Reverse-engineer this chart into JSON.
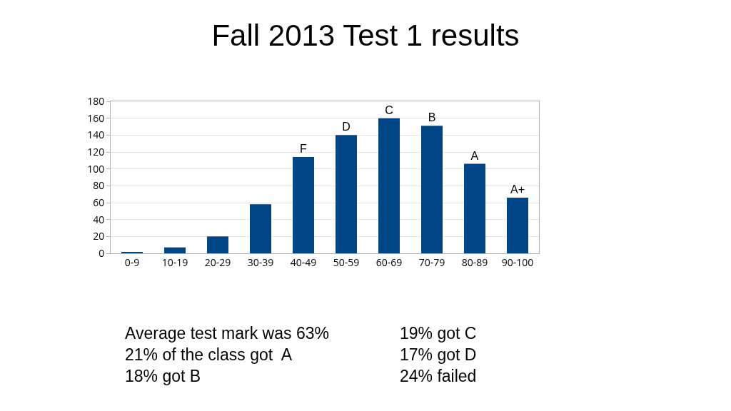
{
  "chart_data": {
    "type": "bar",
    "title": "Fall 2013 Test 1 results",
    "categories": [
      "0-9",
      "10-19",
      "20-29",
      "30-39",
      "40-49",
      "50-59",
      "60-69",
      "70-79",
      "80-89",
      "90-100"
    ],
    "values": [
      1,
      7,
      20,
      58,
      114,
      140,
      160,
      151,
      106,
      66
    ],
    "color": "#004586",
    "ylim": [
      0,
      180
    ],
    "yticks": [
      0,
      20,
      40,
      60,
      80,
      100,
      120,
      140,
      160,
      180
    ],
    "grid": "y",
    "value_labels": [
      null,
      null,
      null,
      null,
      "F",
      "D",
      "C",
      "B",
      "A",
      "A+"
    ],
    "annotations": [
      "Average test mark was 63%",
      "21% of the class got  A",
      "18% got B",
      "19% got C",
      "17% got D",
      "24% failed"
    ]
  }
}
